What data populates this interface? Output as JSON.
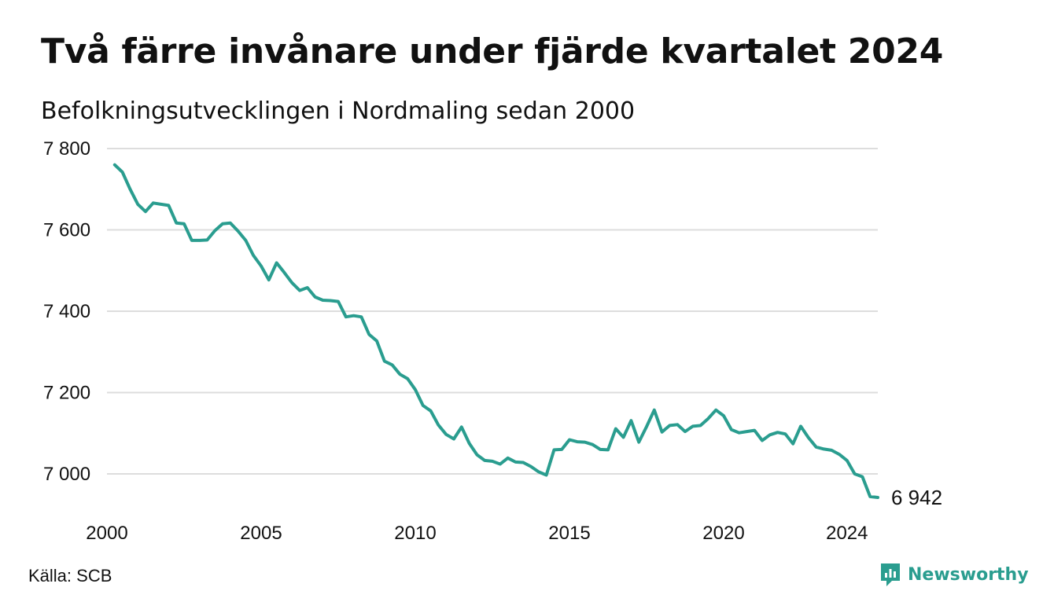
{
  "title": "Två färre invånare under fjärde kvartalet 2024",
  "subtitle": "Befolkningsutvecklingen i Nordmaling sedan 2000",
  "source": "Källa: SCB",
  "brand": {
    "name": "Newsworthy",
    "icon": "newsworthy-logo-icon",
    "color": "#2a9d8f"
  },
  "colors": {
    "line": "#2a9d8f",
    "grid": "#dddddd",
    "text": "#111111"
  },
  "chart_data": {
    "type": "line",
    "title": "Två färre invånare under fjärde kvartalet 2024",
    "subtitle": "Befolkningsutvecklingen i Nordmaling sedan 2000",
    "xlabel": "",
    "ylabel": "",
    "xlim": [
      2000,
      2025
    ],
    "ylim": [
      6940,
      7800
    ],
    "grid": true,
    "legend": "none",
    "x_ticks": [
      {
        "value": 2000,
        "label": "2000"
      },
      {
        "value": 2005,
        "label": "2005"
      },
      {
        "value": 2010,
        "label": "2010"
      },
      {
        "value": 2015,
        "label": "2015"
      },
      {
        "value": 2020,
        "label": "2020"
      },
      {
        "value": 2024,
        "label": "2024"
      }
    ],
    "y_ticks": [
      {
        "value": 7000,
        "label": "7 000"
      },
      {
        "value": 7200,
        "label": "7 200"
      },
      {
        "value": 7400,
        "label": "7 400"
      },
      {
        "value": 7600,
        "label": "7 600"
      },
      {
        "value": 7800,
        "label": "7 800"
      }
    ],
    "end_label": "6 942",
    "series": [
      {
        "color": "#2a9d8f",
        "points": [
          [
            2000.25,
            7760
          ],
          [
            2000.5,
            7742
          ],
          [
            2000.75,
            7700
          ],
          [
            2001.0,
            7663
          ],
          [
            2001.25,
            7645
          ],
          [
            2001.5,
            7666
          ],
          [
            2001.75,
            7663
          ],
          [
            2002.0,
            7660
          ],
          [
            2002.25,
            7617
          ],
          [
            2002.5,
            7615
          ],
          [
            2002.75,
            7574
          ],
          [
            2003.0,
            7574
          ],
          [
            2003.25,
            7575
          ],
          [
            2003.5,
            7598
          ],
          [
            2003.75,
            7615
          ],
          [
            2004.0,
            7617
          ],
          [
            2004.25,
            7597
          ],
          [
            2004.5,
            7574
          ],
          [
            2004.75,
            7537
          ],
          [
            2005.0,
            7511
          ],
          [
            2005.25,
            7477
          ],
          [
            2005.5,
            7519
          ],
          [
            2005.75,
            7495
          ],
          [
            2006.0,
            7470
          ],
          [
            2006.25,
            7451
          ],
          [
            2006.5,
            7458
          ],
          [
            2006.75,
            7435
          ],
          [
            2007.0,
            7427
          ],
          [
            2007.25,
            7426
          ],
          [
            2007.5,
            7424
          ],
          [
            2007.75,
            7386
          ],
          [
            2008.0,
            7389
          ],
          [
            2008.25,
            7386
          ],
          [
            2008.5,
            7343
          ],
          [
            2008.75,
            7327
          ],
          [
            2009.0,
            7277
          ],
          [
            2009.25,
            7268
          ],
          [
            2009.5,
            7245
          ],
          [
            2009.75,
            7234
          ],
          [
            2010.0,
            7207
          ],
          [
            2010.25,
            7168
          ],
          [
            2010.5,
            7155
          ],
          [
            2010.75,
            7120
          ],
          [
            2011.0,
            7097
          ],
          [
            2011.25,
            7086
          ],
          [
            2011.5,
            7115
          ],
          [
            2011.75,
            7075
          ],
          [
            2012.0,
            7047
          ],
          [
            2012.25,
            7033
          ],
          [
            2012.5,
            7031
          ],
          [
            2012.75,
            7024
          ],
          [
            2013.0,
            7039
          ],
          [
            2013.25,
            7029
          ],
          [
            2013.5,
            7028
          ],
          [
            2013.75,
            7018
          ],
          [
            2014.0,
            7005
          ],
          [
            2014.25,
            6997
          ],
          [
            2014.5,
            7059
          ],
          [
            2014.75,
            7060
          ],
          [
            2015.0,
            7084
          ],
          [
            2015.25,
            7079
          ],
          [
            2015.5,
            7078
          ],
          [
            2015.75,
            7072
          ],
          [
            2016.0,
            7060
          ],
          [
            2016.25,
            7059
          ],
          [
            2016.5,
            7111
          ],
          [
            2016.75,
            7090
          ],
          [
            2017.0,
            7131
          ],
          [
            2017.25,
            7078
          ],
          [
            2017.5,
            7116
          ],
          [
            2017.75,
            7157
          ],
          [
            2018.0,
            7103
          ],
          [
            2018.25,
            7119
          ],
          [
            2018.5,
            7121
          ],
          [
            2018.75,
            7104
          ],
          [
            2019.0,
            7117
          ],
          [
            2019.25,
            7119
          ],
          [
            2019.5,
            7136
          ],
          [
            2019.75,
            7157
          ],
          [
            2020.0,
            7143
          ],
          [
            2020.25,
            7109
          ],
          [
            2020.5,
            7101
          ],
          [
            2020.75,
            7104
          ],
          [
            2021.0,
            7107
          ],
          [
            2021.25,
            7082
          ],
          [
            2021.5,
            7096
          ],
          [
            2021.75,
            7102
          ],
          [
            2022.0,
            7098
          ],
          [
            2022.25,
            7074
          ],
          [
            2022.5,
            7117
          ],
          [
            2022.75,
            7089
          ],
          [
            2023.0,
            7066
          ],
          [
            2023.25,
            7061
          ],
          [
            2023.5,
            7058
          ],
          [
            2023.75,
            7048
          ],
          [
            2024.0,
            7033
          ],
          [
            2024.25,
            7000
          ],
          [
            2024.5,
            6993
          ],
          [
            2024.75,
            6944
          ],
          [
            2025.0,
            6942
          ]
        ]
      }
    ]
  }
}
